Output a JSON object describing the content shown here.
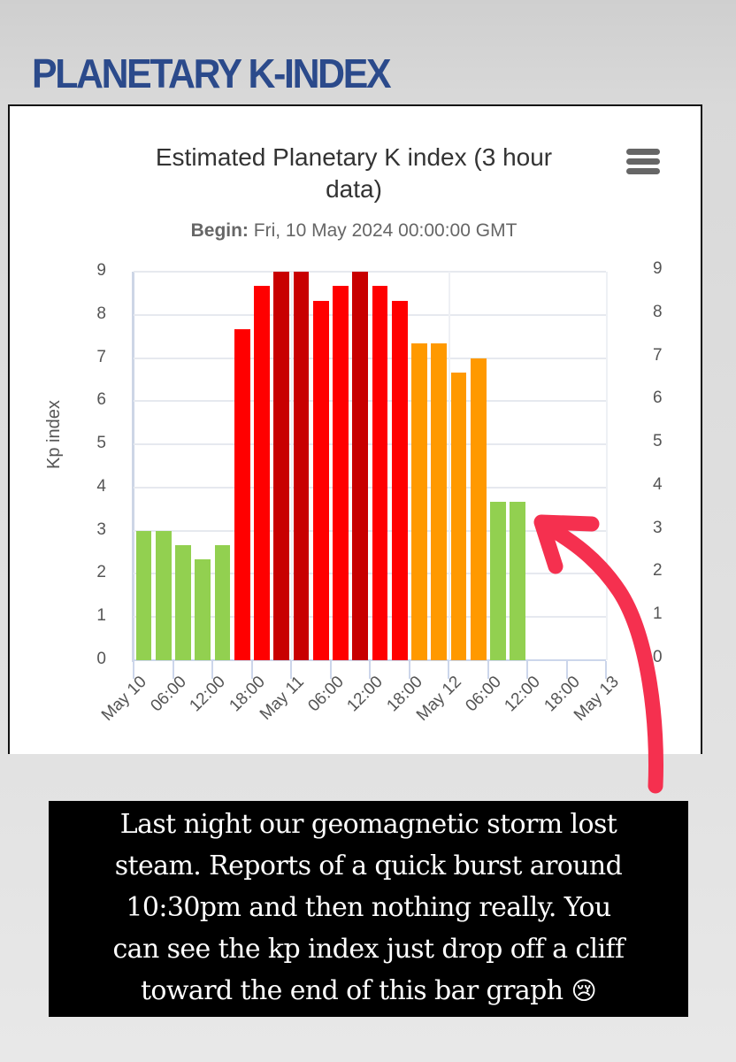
{
  "header": {
    "title": "PLANETARY K-INDEX",
    "title_color": "#2b4a8b"
  },
  "chart_card": {
    "menu_icon": "hamburger-menu-icon",
    "title": "Estimated Planetary K index (3 hour data)",
    "title_line1": "Estimated Planetary K index (3 hour",
    "title_line2": "data)",
    "subtitle_label": "Begin:",
    "subtitle_value": " Fri, 10 May 2024 00:00:00 GMT"
  },
  "chart_data": {
    "type": "bar",
    "title": "Estimated Planetary K index (3 hour data)",
    "subtitle": "Begin: Fri, 10 May 2024 00:00:00 GMT",
    "xlabel": "",
    "ylabel": "Kp index",
    "ylim": [
      0,
      9
    ],
    "y_ticks": [
      0,
      1,
      2,
      3,
      4,
      5,
      6,
      7,
      8,
      9
    ],
    "x_tick_labels": [
      "May 10",
      "06:00",
      "12:00",
      "18:00",
      "May 11",
      "06:00",
      "12:00",
      "18:00",
      "May 12",
      "06:00",
      "12:00",
      "18:00",
      "May 13"
    ],
    "grid": true,
    "legend": null,
    "dual_y_axis": true,
    "categories": [
      "May 10 00:00",
      "May 10 03:00",
      "May 10 06:00",
      "May 10 09:00",
      "May 10 12:00",
      "May 10 15:00",
      "May 10 18:00",
      "May 10 21:00",
      "May 11 00:00",
      "May 11 03:00",
      "May 11 06:00",
      "May 11 09:00",
      "May 11 12:00",
      "May 11 15:00",
      "May 11 18:00",
      "May 11 21:00",
      "May 12 00:00",
      "May 12 03:00",
      "May 12 06:00",
      "May 12 09:00"
    ],
    "values": [
      3.0,
      3.0,
      2.67,
      2.33,
      2.67,
      7.67,
      8.67,
      9.0,
      9.0,
      8.33,
      8.67,
      9.0,
      8.67,
      8.33,
      7.33,
      7.33,
      6.67,
      7.0,
      3.67,
      3.67
    ],
    "bar_colors": [
      "#92d050",
      "#92d050",
      "#92d050",
      "#92d050",
      "#92d050",
      "#ff0000",
      "#ff0000",
      "#c80000",
      "#c80000",
      "#ff0000",
      "#ff0000",
      "#c80000",
      "#ff0000",
      "#ff0000",
      "#ff9900",
      "#ff9900",
      "#ff9900",
      "#ff9900",
      "#92d050",
      "#92d050"
    ],
    "color_legend": {
      "green": "#92d050",
      "orange": "#ff9900",
      "red": "#ff0000",
      "dark_red": "#c80000"
    }
  },
  "annotation": {
    "arrow_color": "#f5304f",
    "arrow_icon": "curved-arrow-icon"
  },
  "caption": {
    "lines": [
      "Last night our geomagnetic storm lost",
      "steam. Reports of a quick burst around",
      "10:30pm and then nothing really. You",
      "can see the kp index just drop off a cliff",
      "toward the end of this bar graph"
    ],
    "emoji": "😢"
  }
}
